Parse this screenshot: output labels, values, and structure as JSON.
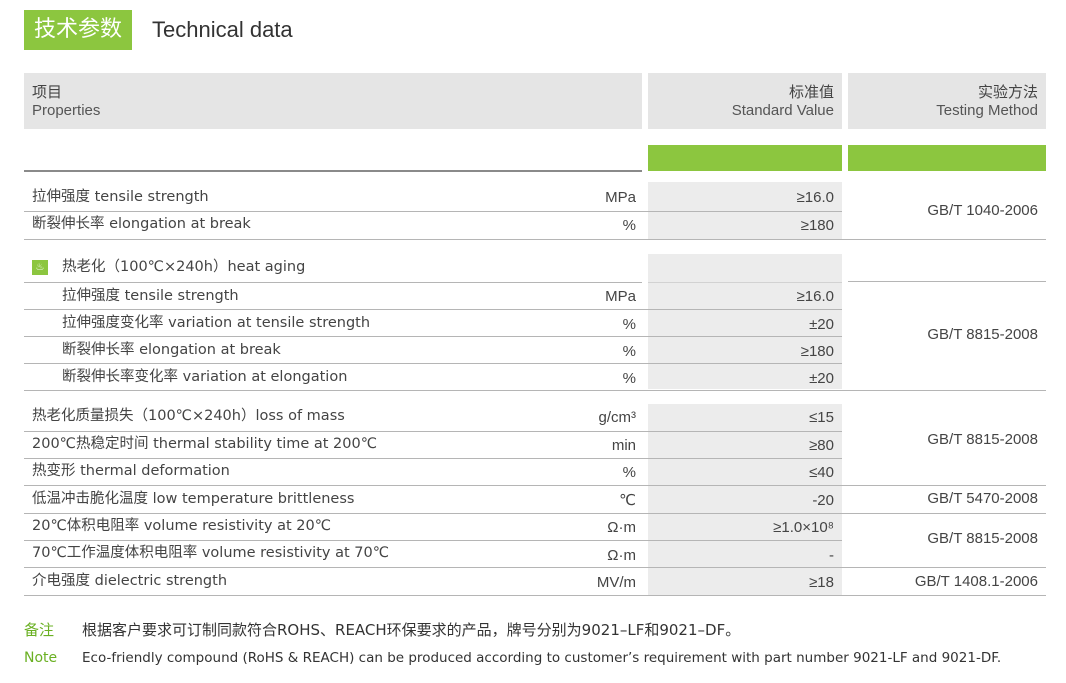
{
  "title": {
    "cn": "技术参数",
    "en": "Technical data"
  },
  "header": {
    "col1": {
      "cn": "项目",
      "en": "Properties"
    },
    "col2": {
      "cn": "标准值",
      "en": "Standard Value"
    },
    "col3": {
      "cn": "实验方法",
      "en": "Testing Method"
    }
  },
  "colors": {
    "accent": "#8cc63f",
    "header_bg": "#e5e5e5",
    "value_bg": "#ececec"
  },
  "rows": [
    {
      "property": "拉伸强度 tensile strength",
      "unit": "MPa",
      "value": "≥16.0"
    },
    {
      "property": "断裂伸长率 elongation at break",
      "unit": "%",
      "value": "≥180"
    },
    {
      "property": "热老化（100℃×240h）heat aging",
      "unit": "",
      "value": ""
    },
    {
      "property": "拉伸强度 tensile strength",
      "unit": "MPa",
      "value": "≥16.0"
    },
    {
      "property": "拉伸强度变化率 variation at tensile strength",
      "unit": "%",
      "value": "±20"
    },
    {
      "property": "断裂伸长率 elongation at break",
      "unit": "%",
      "value": "≥180"
    },
    {
      "property": "断裂伸长率变化率 variation at elongation",
      "unit": "%",
      "value": "±20"
    },
    {
      "property": "热老化质量损失（100℃×240h）loss of mass",
      "unit": "g/cm³",
      "value": "≤15"
    },
    {
      "property": "200℃热稳定时间 thermal stability time at 200℃",
      "unit": "min",
      "value": "≥80"
    },
    {
      "property": "热变形 thermal deformation",
      "unit": "%",
      "value": "≤40"
    },
    {
      "property": "低温冲击脆化温度 low temperature brittleness",
      "unit": "℃",
      "value": "-20"
    },
    {
      "property": "20℃体积电阻率 volume resistivity at 20℃",
      "unit": "Ω·m",
      "value": "≥1.0×10⁸"
    },
    {
      "property": "70℃工作温度体积电阻率 volume resistivity at 70℃",
      "unit": "Ω·m",
      "value": "-"
    },
    {
      "property": "介电强度 dielectric strength",
      "unit": "MV/m",
      "value": "≥18"
    }
  ],
  "heat_icon": "heat-aging-icon",
  "methods": [
    "GB/T 1040-2006",
    "GB/T 8815-2008",
    "GB/T 8815-2008",
    "GB/T 5470-2008",
    "GB/T 8815-2008",
    "GB/T 1408.1-2006"
  ],
  "notes": {
    "cn_label": "备注",
    "cn_text": "根据客户要求可订制同款符合ROHS、REACH环保要求的产品，牌号分别为9021–LF和9021–DF。",
    "en_label": "Note",
    "en_text": "Eco-friendly compound (RoHS & REACH) can be produced according to customer’s requirement with part number 9021-LF and 9021-DF."
  }
}
